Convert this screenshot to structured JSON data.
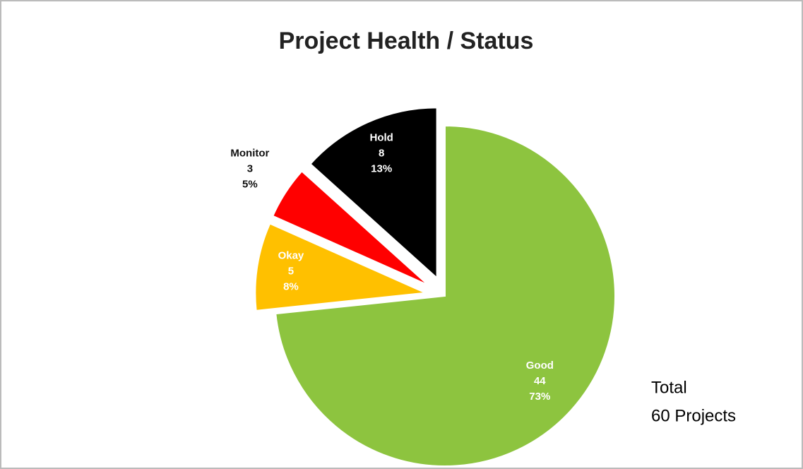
{
  "chart_data": {
    "type": "pie",
    "title": "Project Health / Status",
    "categories": [
      "Good",
      "Okay",
      "Monitor",
      "Hold"
    ],
    "values": [
      44,
      5,
      3,
      8
    ],
    "percent_labels": [
      "73%",
      "8%",
      "5%",
      "13%"
    ],
    "colors": [
      "#8dc43f",
      "#ffc000",
      "#ff0000",
      "#000000"
    ],
    "annotations": [
      "Total",
      "60 Projects"
    ]
  }
}
